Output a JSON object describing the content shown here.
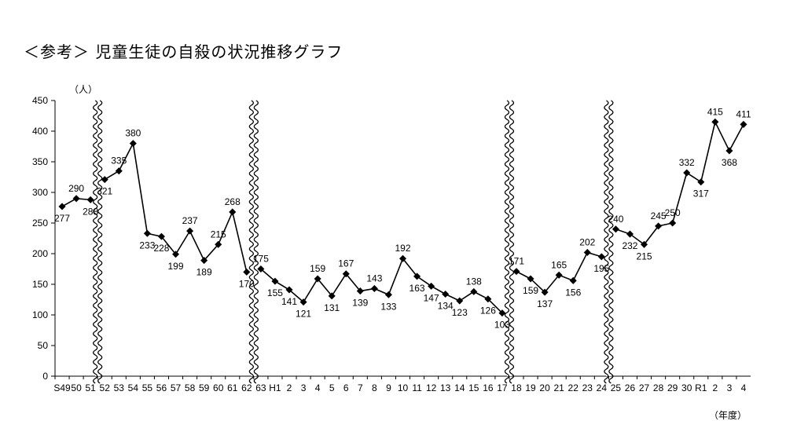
{
  "title": "＜参考＞ 児童生徒の自殺の状況推移グラフ",
  "chart_data": {
    "type": "line",
    "title": "＜参考＞ 児童生徒の自殺の状況推移グラフ",
    "ylabel": "（人）",
    "xlabel": "（年度）",
    "ylim": [
      0,
      450
    ],
    "yticks": [
      0,
      50,
      100,
      150,
      200,
      250,
      300,
      350,
      400,
      450
    ],
    "grid": false,
    "categories": [
      "S49",
      "50",
      "51",
      "52",
      "53",
      "54",
      "55",
      "56",
      "57",
      "58",
      "59",
      "60",
      "61",
      "62",
      "63",
      "H1",
      "2",
      "3",
      "4",
      "5",
      "6",
      "7",
      "8",
      "9",
      "10",
      "11",
      "12",
      "13",
      "14",
      "15",
      "16",
      "17",
      "18",
      "19",
      "20",
      "21",
      "22",
      "23",
      "24",
      "25",
      "26",
      "27",
      "28",
      "29",
      "30",
      "R1",
      "2",
      "3",
      "4"
    ],
    "segments": [
      {
        "start": 0,
        "values": [
          277,
          290,
          288
        ]
      },
      {
        "start": 3,
        "values": [
          321,
          335,
          380,
          233,
          228,
          199,
          237,
          189,
          215,
          268,
          170
        ]
      },
      {
        "start": 14,
        "values": [
          175,
          155,
          141,
          121,
          159,
          131,
          167,
          139,
          143,
          133,
          192,
          163,
          147,
          134,
          123,
          138,
          126,
          103
        ]
      },
      {
        "start": 32,
        "values": [
          171,
          159,
          137,
          165,
          156,
          202,
          195
        ]
      },
      {
        "start": 39,
        "values": [
          240,
          232,
          215,
          245,
          250,
          332,
          317,
          415,
          368,
          411
        ]
      }
    ],
    "breaks_after": [
      2,
      13,
      31,
      38
    ]
  }
}
